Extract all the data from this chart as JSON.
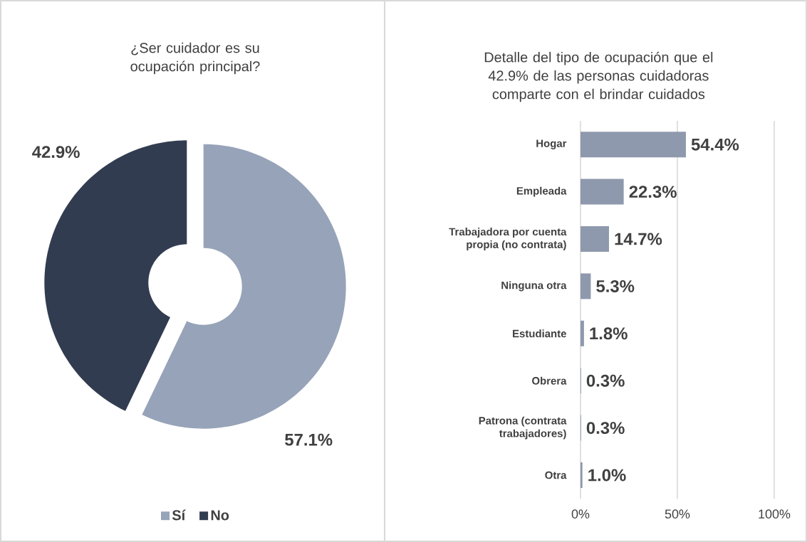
{
  "chart_data": [
    {
      "type": "donut",
      "title": "¿Ser cuidador es su ocupación principal?",
      "categories": [
        "Sí",
        "No"
      ],
      "values": [
        57.1,
        42.9
      ],
      "colors": [
        "#97a3b8",
        "#323c50"
      ],
      "value_labels": [
        "57.1%",
        "42.9%"
      ],
      "legend": "bottom"
    },
    {
      "type": "bar",
      "orientation": "horizontal",
      "title": "Detalle del tipo de ocupación que el 42.9% de las personas cuidadoras comparte con el brindar cuidados",
      "categories": [
        "Hogar",
        "Empleada",
        "Trabajadora por cuenta propia (no contrata)",
        "Ninguna otra",
        "Estudiante",
        "Obrera",
        "Patrona (contrata trabajadores)",
        "Otra"
      ],
      "values": [
        54.4,
        22.3,
        14.7,
        5.3,
        1.8,
        0.3,
        0.3,
        1.0
      ],
      "color": "#8e99ad",
      "value_labels": [
        "54.4%",
        "22.3%",
        "14.7%",
        "5.3%",
        "1.8%",
        "0.3%",
        "0.3%",
        "1.0%"
      ],
      "xlim": [
        0,
        100
      ],
      "xticks": [
        {
          "value": 0,
          "label": "0%"
        },
        {
          "value": 50,
          "label": "50%"
        },
        {
          "value": 100,
          "label": "100%"
        }
      ],
      "grid": "x"
    }
  ]
}
